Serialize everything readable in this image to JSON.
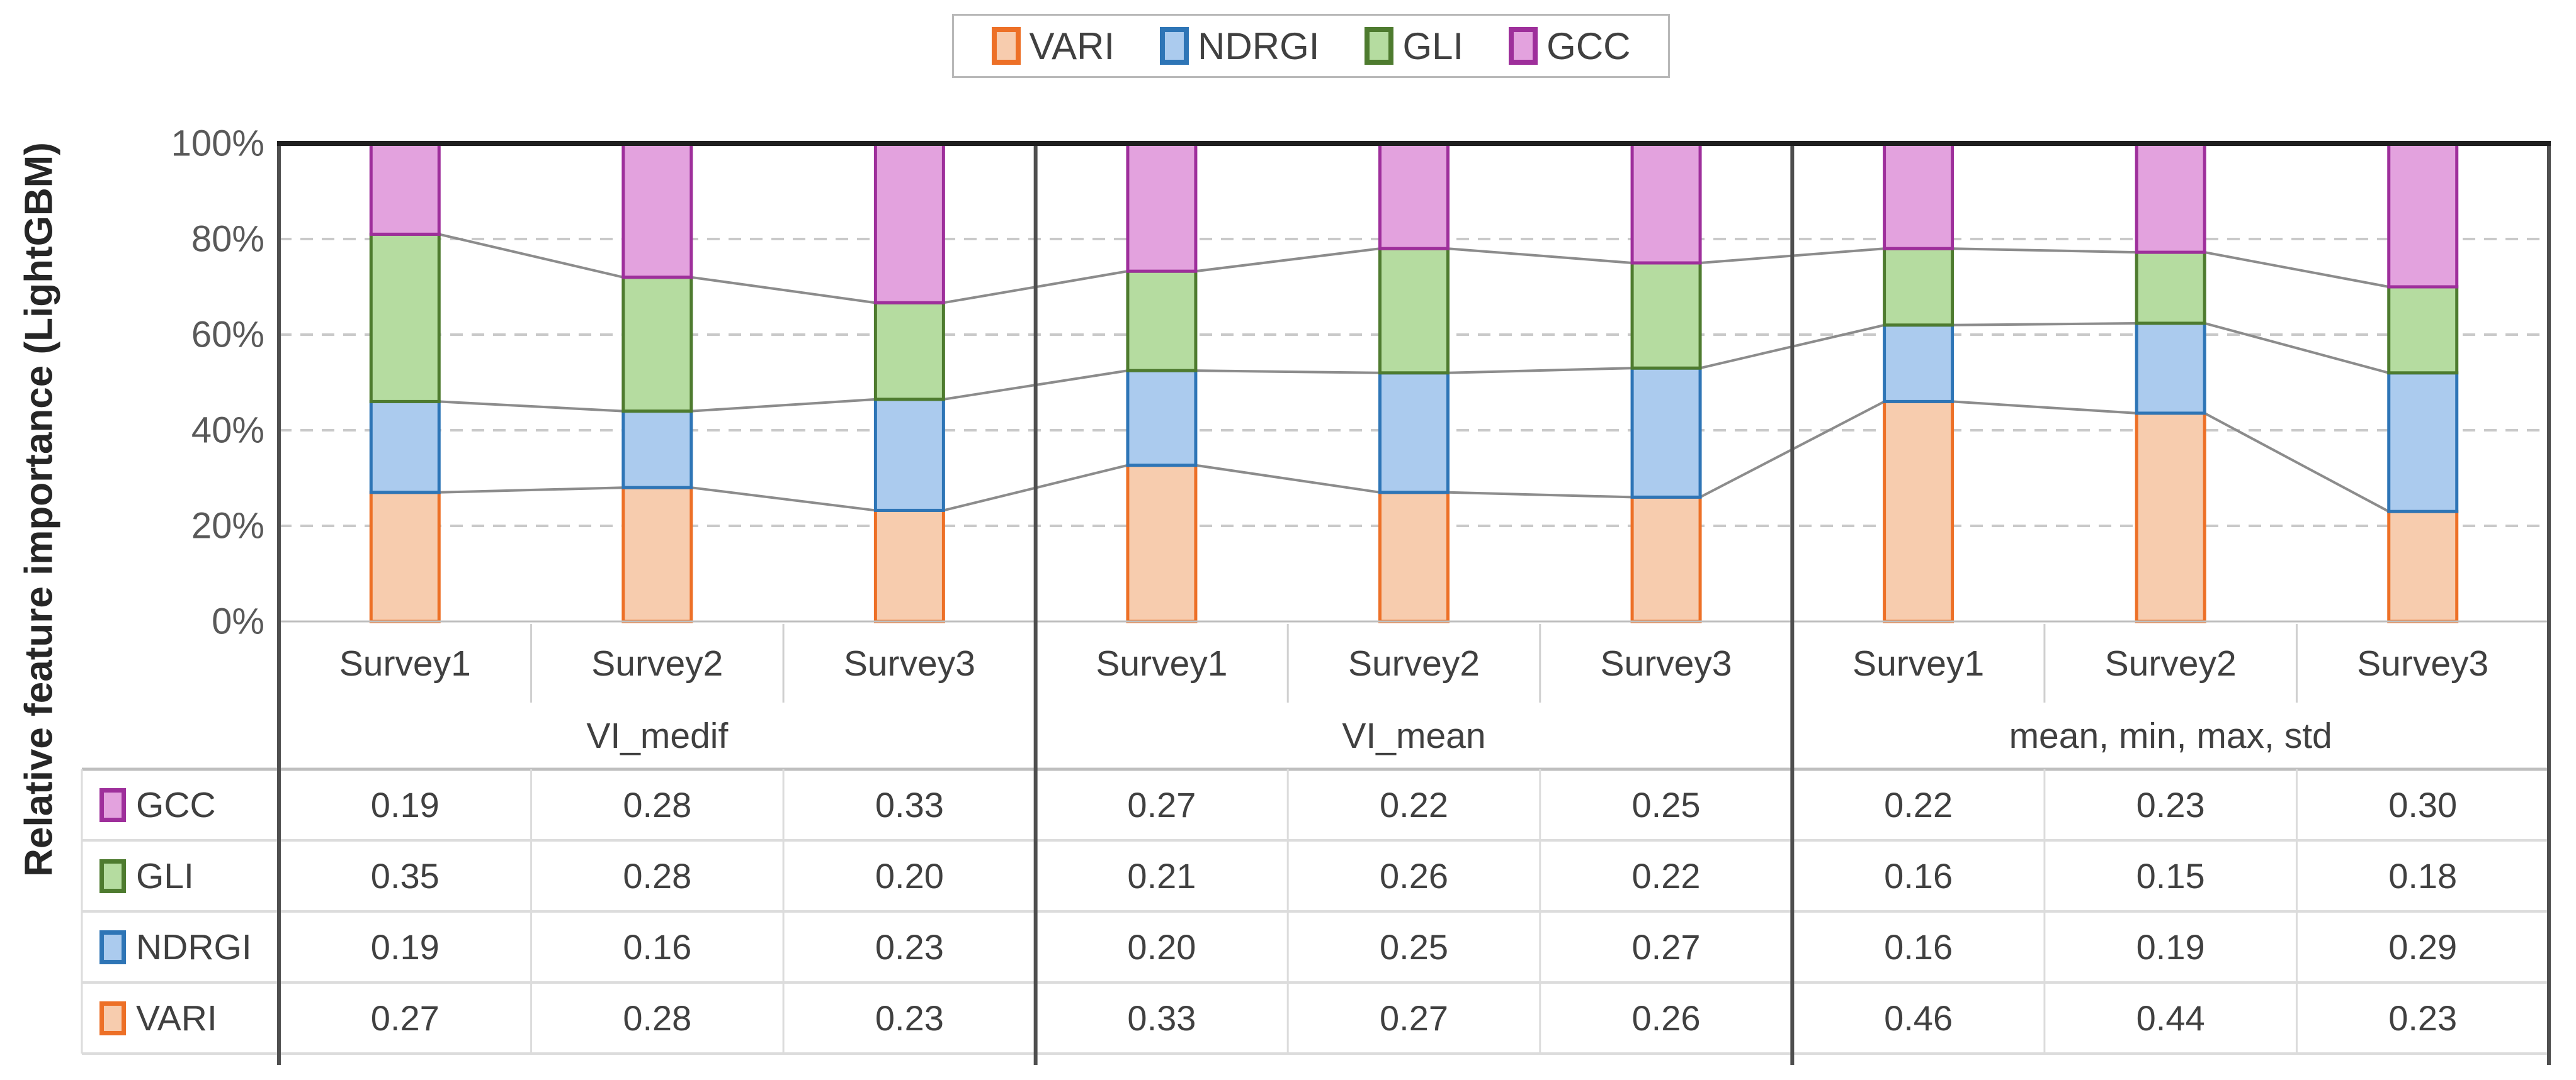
{
  "chart_data": {
    "type": "bar",
    "stacked": "percent",
    "title": "",
    "ylabel": "Relative feature importance (LightGBM)",
    "yticks": [
      "0%",
      "20%",
      "40%",
      "60%",
      "80%",
      "100%"
    ],
    "ylim": [
      0,
      1
    ],
    "grid": "horizontal dashed at 20/40/60/80%",
    "legend_position": "top-center",
    "legend_order": [
      "VARI",
      "NDRGI",
      "GLI",
      "GCC"
    ],
    "groups": [
      {
        "label": "VI_medif",
        "categories": [
          "Survey1",
          "Survey2",
          "Survey3"
        ]
      },
      {
        "label": "VI_mean",
        "categories": [
          "Survey1",
          "Survey2",
          "Survey3"
        ]
      },
      {
        "label": "mean, min, max, std",
        "categories": [
          "Survey1",
          "Survey2",
          "Survey3"
        ]
      }
    ],
    "series": [
      {
        "name": "VARI",
        "fill": "#F7CCAE",
        "border": "#ED7027",
        "values": [
          0.27,
          0.28,
          0.23,
          0.33,
          0.27,
          0.26,
          0.46,
          0.44,
          0.23
        ]
      },
      {
        "name": "NDRGI",
        "fill": "#ABCBEE",
        "border": "#2E75B6",
        "values": [
          0.19,
          0.16,
          0.23,
          0.2,
          0.25,
          0.27,
          0.16,
          0.19,
          0.29
        ]
      },
      {
        "name": "GLI",
        "fill": "#B5DCA0",
        "border": "#4E7B2F",
        "values": [
          0.35,
          0.28,
          0.2,
          0.21,
          0.26,
          0.22,
          0.16,
          0.15,
          0.18
        ]
      },
      {
        "name": "GCC",
        "fill": "#E3A2DE",
        "border": "#9E2F9B",
        "values": [
          0.19,
          0.28,
          0.33,
          0.27,
          0.22,
          0.25,
          0.22,
          0.23,
          0.3
        ]
      }
    ],
    "series_lines": {
      "show": true,
      "color": "#8C8C8C"
    }
  },
  "table": {
    "column_headers": [
      "Survey1",
      "Survey2",
      "Survey3",
      "Survey1",
      "Survey2",
      "Survey3",
      "Survey1",
      "Survey2",
      "Survey3"
    ],
    "group_headers": [
      "VI_medif",
      "VI_mean",
      "mean, min, max, std"
    ],
    "rows": [
      {
        "label": "GCC",
        "swatch_fill": "#E3A2DE",
        "swatch_border": "#9E2F9B",
        "values": [
          "0.19",
          "0.28",
          "0.33",
          "0.27",
          "0.22",
          "0.25",
          "0.22",
          "0.23",
          "0.30"
        ]
      },
      {
        "label": "GLI",
        "swatch_fill": "#B5DCA0",
        "swatch_border": "#4E7B2F",
        "values": [
          "0.35",
          "0.28",
          "0.20",
          "0.21",
          "0.26",
          "0.22",
          "0.16",
          "0.15",
          "0.18"
        ]
      },
      {
        "label": "NDRGI",
        "swatch_fill": "#ABCBEE",
        "swatch_border": "#2E75B6",
        "values": [
          "0.19",
          "0.16",
          "0.23",
          "0.20",
          "0.25",
          "0.27",
          "0.16",
          "0.19",
          "0.29"
        ]
      },
      {
        "label": "VARI",
        "swatch_fill": "#F7CCAE",
        "swatch_border": "#ED7027",
        "values": [
          "0.27",
          "0.28",
          "0.23",
          "0.33",
          "0.27",
          "0.26",
          "0.46",
          "0.44",
          "0.23"
        ]
      }
    ]
  },
  "style_colors": {
    "gridline": "#C9C9C9",
    "series_line": "#8C8C8C",
    "axis_dark": "#4F4F4F",
    "top_border": "#1F1F1F",
    "table_line_light": "#DCDCDC",
    "table_line_medium": "#BFBFBF",
    "tick_text": "#595959",
    "body_text": "#404040"
  }
}
